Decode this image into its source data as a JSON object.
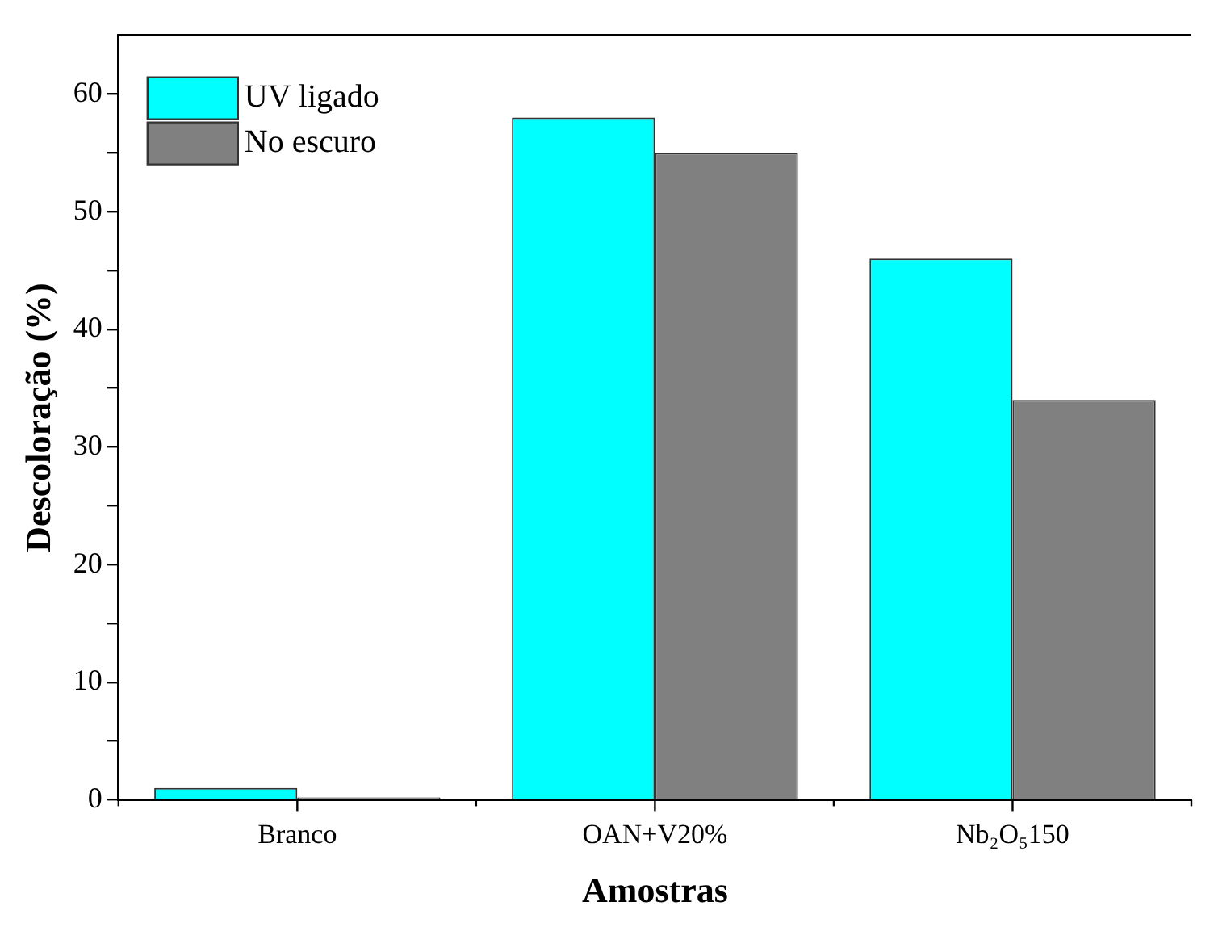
{
  "chart_data": {
    "type": "bar",
    "xlabel": "Amostras",
    "ylabel": "Descoloração (%)",
    "categories": [
      "Branco",
      "OAN+V20%",
      "Nb₂O₅150"
    ],
    "series": [
      {
        "name": "UV ligado",
        "color": "#00ffff",
        "values": [
          1.0,
          58,
          46
        ]
      },
      {
        "name": "No escuro",
        "color": "#808080",
        "values": [
          0.2,
          55,
          34
        ]
      }
    ],
    "ylim": [
      0,
      65
    ],
    "yticks": [
      0,
      {
        "value": 5,
        "label": null
      },
      10,
      {
        "value": 15,
        "label": null
      },
      20,
      {
        "value": 25,
        "label": null
      },
      30,
      {
        "value": 35,
        "label": null
      },
      40,
      {
        "value": 45,
        "label": null
      },
      50,
      {
        "value": 55,
        "label": null
      },
      60
    ],
    "grid": false,
    "legend": "top left"
  }
}
